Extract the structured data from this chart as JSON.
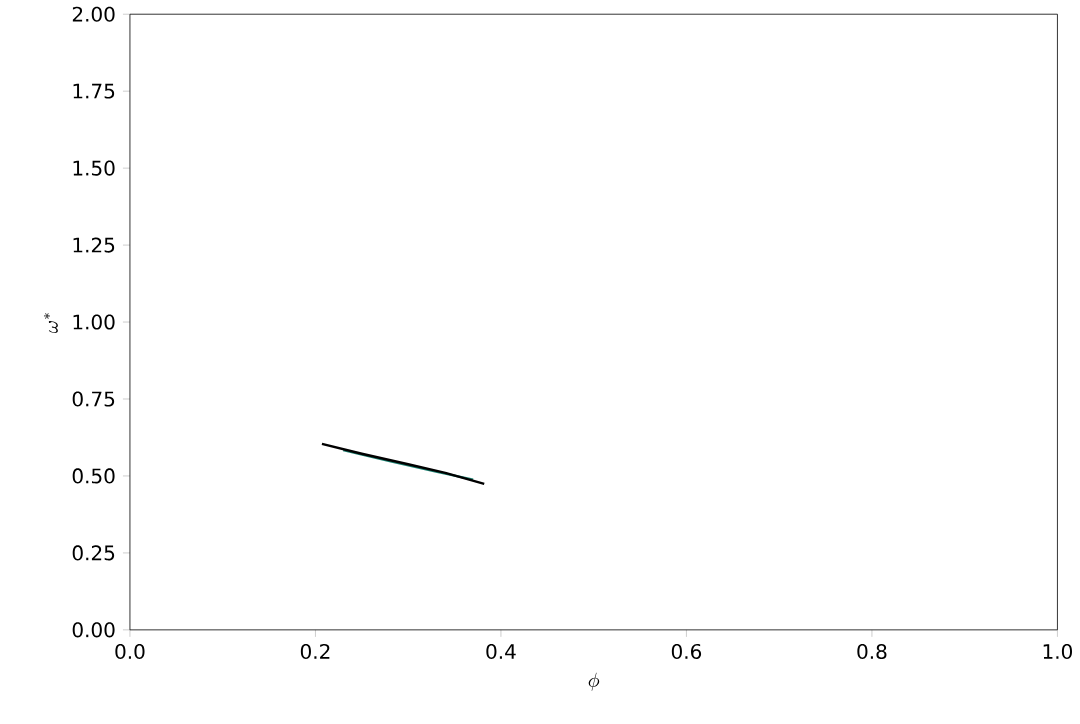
{
  "chart_data": {
    "type": "line",
    "xlabel": "\\phi",
    "ylabel": "\\omega^*",
    "xlim": [
      0,
      1
    ],
    "ylim": [
      0,
      2
    ],
    "xticks": [
      {
        "value": 0,
        "label": "0.0"
      },
      {
        "value": 0.2,
        "label": "0.2"
      },
      {
        "value": 0.4,
        "label": "0.4"
      },
      {
        "value": 0.6,
        "label": "0.6"
      },
      {
        "value": 0.8,
        "label": "0.8"
      },
      {
        "value": 1,
        "label": "1.0"
      }
    ],
    "yticks": [
      {
        "value": 0,
        "label": "0.00"
      },
      {
        "value": 0.25,
        "label": "0.25"
      },
      {
        "value": 0.5,
        "label": "0.50"
      },
      {
        "value": 0.75,
        "label": "0.75"
      },
      {
        "value": 1,
        "label": "1.00"
      },
      {
        "value": 1.25,
        "label": "1.25"
      },
      {
        "value": 1.5,
        "label": "1.50"
      },
      {
        "value": 1.75,
        "label": "1.75"
      },
      {
        "value": 2,
        "label": "2.00"
      }
    ],
    "series": [
      {
        "color": "#1a8070",
        "x": [
          0.23,
          0.28,
          0.33,
          0.37
        ],
        "values": [
          0.584,
          0.548,
          0.514,
          0.488
        ]
      },
      {
        "color": "#000000",
        "x": [
          0.207,
          0.25,
          0.3,
          0.34,
          0.382
        ],
        "values": [
          0.604,
          0.572,
          0.538,
          0.51,
          0.474
        ]
      }
    ]
  }
}
